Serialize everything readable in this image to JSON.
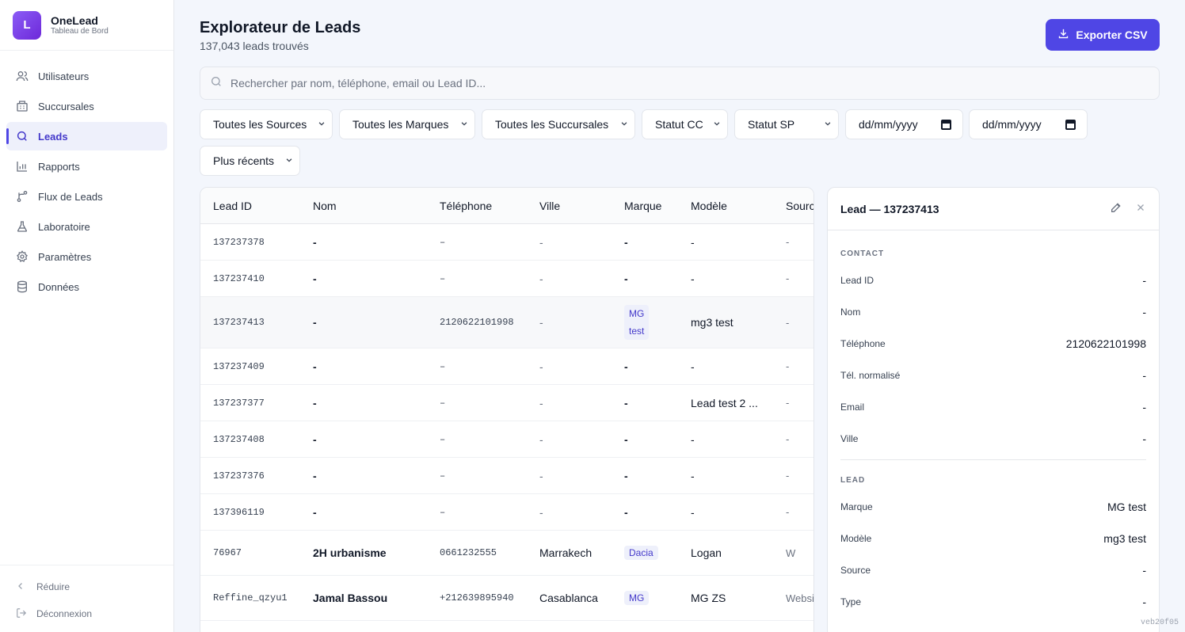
{
  "brand": {
    "initial": "L",
    "name": "OneLead",
    "subtitle": "Tableau de Bord"
  },
  "nav": [
    {
      "label": "Utilisateurs",
      "icon": "users-icon"
    },
    {
      "label": "Succursales",
      "icon": "building-icon"
    },
    {
      "label": "Leads",
      "icon": "search-icon",
      "active": true
    },
    {
      "label": "Rapports",
      "icon": "bar-chart-icon"
    },
    {
      "label": "Flux de Leads",
      "icon": "workflow-icon"
    },
    {
      "label": "Laboratoire",
      "icon": "flask-icon"
    },
    {
      "label": "Paramètres",
      "icon": "gear-icon"
    },
    {
      "label": "Données",
      "icon": "database-icon"
    }
  ],
  "footer": {
    "collapse": "Réduire",
    "logout": "Déconnexion"
  },
  "header": {
    "title": "Explorateur de Leads",
    "subtitle": "137,043 leads trouvés",
    "export_label": "Exporter CSV"
  },
  "search": {
    "placeholder": "Rechercher par nom, téléphone, email ou Lead ID..."
  },
  "filters": {
    "source": "Toutes les Sources",
    "brand": "Toutes les Marques",
    "branch": "Toutes les Succursales",
    "status_cc": "Statut CC",
    "status_sp": "Statut SP",
    "date_from": "dd/mm/yyyy",
    "date_to": "dd/mm/yyyy",
    "sort": "Plus récents"
  },
  "table": {
    "headers": [
      "Lead ID",
      "Nom",
      "Téléphone",
      "Ville",
      "Marque",
      "Modèle",
      "Source"
    ],
    "rows": [
      {
        "id": "137237378",
        "name": "-",
        "phone": "–",
        "city": "-",
        "brand": "-",
        "model": "-",
        "source": "-"
      },
      {
        "id": "137237410",
        "name": "-",
        "phone": "–",
        "city": "-",
        "brand": "-",
        "model": "-",
        "source": "-"
      },
      {
        "id": "137237413",
        "name": "-",
        "phone": "2120622101998",
        "city": "-",
        "brand_badge_1": "MG",
        "brand_badge_2": "test",
        "model": "mg3 test",
        "source": "-"
      },
      {
        "id": "137237409",
        "name": "-",
        "phone": "–",
        "city": "-",
        "brand": "-",
        "model": "-",
        "source": "-"
      },
      {
        "id": "137237377",
        "name": "-",
        "phone": "–",
        "city": "-",
        "brand": "-",
        "model": "Lead test 2 ...",
        "source": "-"
      },
      {
        "id": "137237408",
        "name": "-",
        "phone": "–",
        "city": "-",
        "brand": "-",
        "model": "-",
        "source": "-"
      },
      {
        "id": "137237376",
        "name": "-",
        "phone": "–",
        "city": "-",
        "brand": "-",
        "model": "-",
        "source": "-"
      },
      {
        "id": "137396119",
        "name": "-",
        "phone": "–",
        "city": "-",
        "brand": "-",
        "model": "-",
        "source": "-"
      },
      {
        "id": "76967",
        "name": "2H urbanisme",
        "phone": "0661232555",
        "city": "Marrakech",
        "brand_badge": "Dacia",
        "model": "Logan",
        "source": "W"
      },
      {
        "id": "Reffine_qzyu1",
        "name": "Jamal Bassou",
        "phone": "+212639895940",
        "city": "Casablanca",
        "brand_badge": "MG",
        "model": "MG ZS",
        "source": "Websit"
      }
    ]
  },
  "panel": {
    "title": "Lead — 137237413",
    "contact_label": "CONTACT",
    "contact": [
      {
        "k": "Lead ID",
        "v": "-"
      },
      {
        "k": "Nom",
        "v": "-"
      },
      {
        "k": "Téléphone",
        "v": "2120622101998"
      },
      {
        "k": "Tél. normalisé",
        "v": "-"
      },
      {
        "k": "Email",
        "v": "-"
      },
      {
        "k": "Ville",
        "v": "-"
      }
    ],
    "lead_label": "LEAD",
    "lead": [
      {
        "k": "Marque",
        "v": "MG test"
      },
      {
        "k": "Modèle",
        "v": "mg3 test"
      },
      {
        "k": "Source",
        "v": "-"
      },
      {
        "k": "Type",
        "v": "-"
      }
    ]
  },
  "version": "veb20f05",
  "colors": {
    "accent": "#4f46e5",
    "badge_bg": "#eef0fb"
  }
}
